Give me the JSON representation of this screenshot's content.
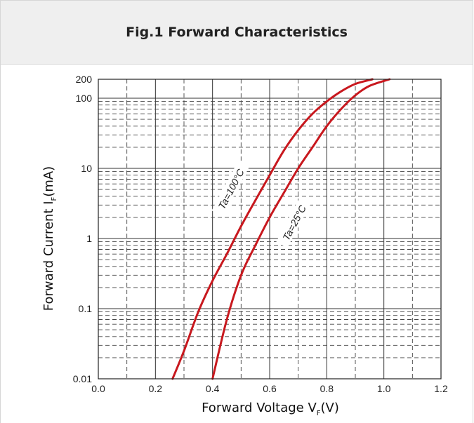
{
  "title": "Fig.1 Forward Characteristics",
  "chart_data": {
    "type": "line",
    "title": "Fig.1 Forward Characteristics",
    "xlabel": "Forward Voltage V",
    "xlabel_sub": "F",
    "xlabel_tail": "(V)",
    "ylabel": "Forward Current I",
    "ylabel_sub": "F",
    "ylabel_tail": "(mA)",
    "xlim": [
      0.0,
      1.2
    ],
    "ylim": [
      0.01,
      200
    ],
    "yscale": "log",
    "grid": true,
    "x_ticks": [
      "0.0",
      "0.2",
      "0.4",
      "0.6",
      "0.8",
      "1.0",
      "1.2"
    ],
    "y_ticks": [
      "0.01",
      "0.1",
      "1",
      "10",
      "100",
      "200"
    ],
    "series": [
      {
        "name": "Ta=100°C",
        "color": "#c8181e",
        "x": [
          0.26,
          0.3,
          0.35,
          0.4,
          0.45,
          0.5,
          0.55,
          0.6,
          0.65,
          0.7,
          0.75,
          0.8,
          0.85,
          0.9,
          0.96
        ],
        "y": [
          0.01,
          0.025,
          0.09,
          0.25,
          0.6,
          1.5,
          3.5,
          8,
          18,
          35,
          60,
          90,
          125,
          160,
          200
        ]
      },
      {
        "name": "Ta=25°C",
        "color": "#c8181e",
        "x": [
          0.4,
          0.45,
          0.5,
          0.55,
          0.6,
          0.65,
          0.7,
          0.75,
          0.8,
          0.85,
          0.9,
          0.95,
          1.02
        ],
        "y": [
          0.01,
          0.07,
          0.3,
          0.8,
          2.0,
          4.5,
          10,
          20,
          40,
          70,
          110,
          150,
          200
        ]
      }
    ]
  }
}
